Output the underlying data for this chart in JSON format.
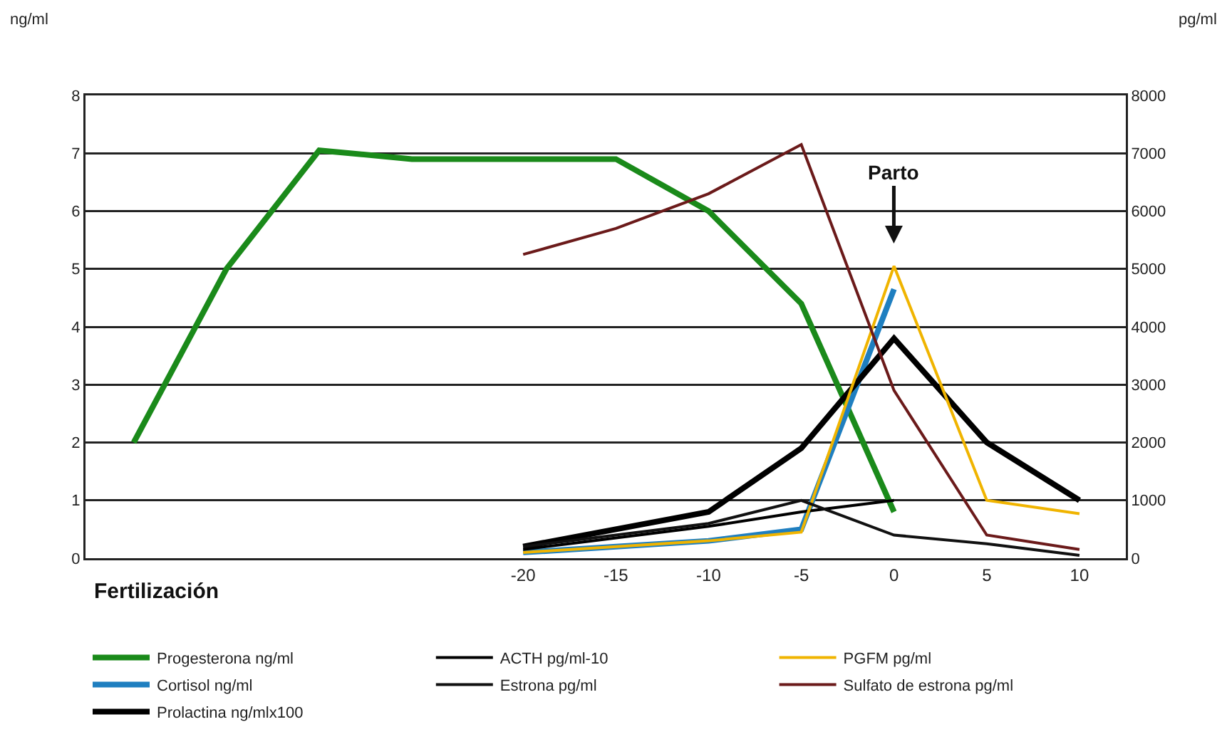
{
  "chart_data": {
    "type": "line",
    "ylabel": "ng/ml",
    "y2label": "pg/ml",
    "xlim": [
      -43.6,
      12.5
    ],
    "xticks": [
      -20,
      -15,
      -10,
      -5,
      0,
      5,
      10
    ],
    "ylim": [
      0,
      8
    ],
    "yticks": [
      0,
      1,
      2,
      3,
      4,
      5,
      6,
      7,
      8
    ],
    "y2lim": [
      0,
      8000
    ],
    "y2ticks": [
      0,
      1000,
      2000,
      3000,
      4000,
      5000,
      6000,
      7000,
      8000
    ],
    "grid": "y",
    "legend": "bottom",
    "marker": "none",
    "line_style": "solid",
    "annotations": [
      "Parto",
      "Fertilización"
    ],
    "series": [
      {
        "name": "Progesterona ng/ml",
        "color": "#1a8a1a",
        "x": [
          -41,
          -36,
          -31,
          -26,
          -15,
          -10,
          -5,
          0
        ],
        "values": [
          2.0,
          5.0,
          7.05,
          6.9,
          6.9,
          6.0,
          4.4,
          0.8
        ]
      },
      {
        "name": "ACTH pg/ml-10",
        "color": "#000000",
        "axis": "y2",
        "x": [
          -20,
          -10,
          -5,
          0
        ],
        "values": [
          150,
          550,
          800,
          1000
        ]
      },
      {
        "name": "PGFM pg/ml",
        "color": "#f0b400",
        "axis": "y2",
        "x": [
          -20,
          -10,
          -5,
          0,
          5,
          10
        ],
        "values": [
          100,
          300,
          450,
          5050,
          1000,
          770
        ]
      },
      {
        "name": "Cortisol ng/ml",
        "color": "#1f7fc0",
        "x": [
          -20,
          -10,
          -5,
          0
        ],
        "values": [
          0.1,
          0.3,
          0.5,
          4.65
        ]
      },
      {
        "name": "Estrona pg/ml",
        "color": "#111111",
        "axis": "y2",
        "x": [
          -20,
          -10,
          -5,
          0,
          5,
          10
        ],
        "values": [
          200,
          600,
          1000,
          400,
          250,
          50
        ]
      },
      {
        "name": "Sulfato de estrona pg/ml",
        "color": "#6b1a1a",
        "axis": "y2",
        "x": [
          -20,
          -15,
          -10,
          -5,
          0,
          5,
          10
        ],
        "values": [
          5250,
          5700,
          6300,
          7150,
          2900,
          400,
          150
        ]
      },
      {
        "name": "Prolactina ng/mlx100",
        "color": "#000000",
        "x": [
          -20,
          -10,
          -5,
          0,
          5,
          10
        ],
        "values": [
          0.2,
          0.8,
          1.9,
          3.8,
          2.0,
          1.0
        ]
      }
    ]
  }
}
